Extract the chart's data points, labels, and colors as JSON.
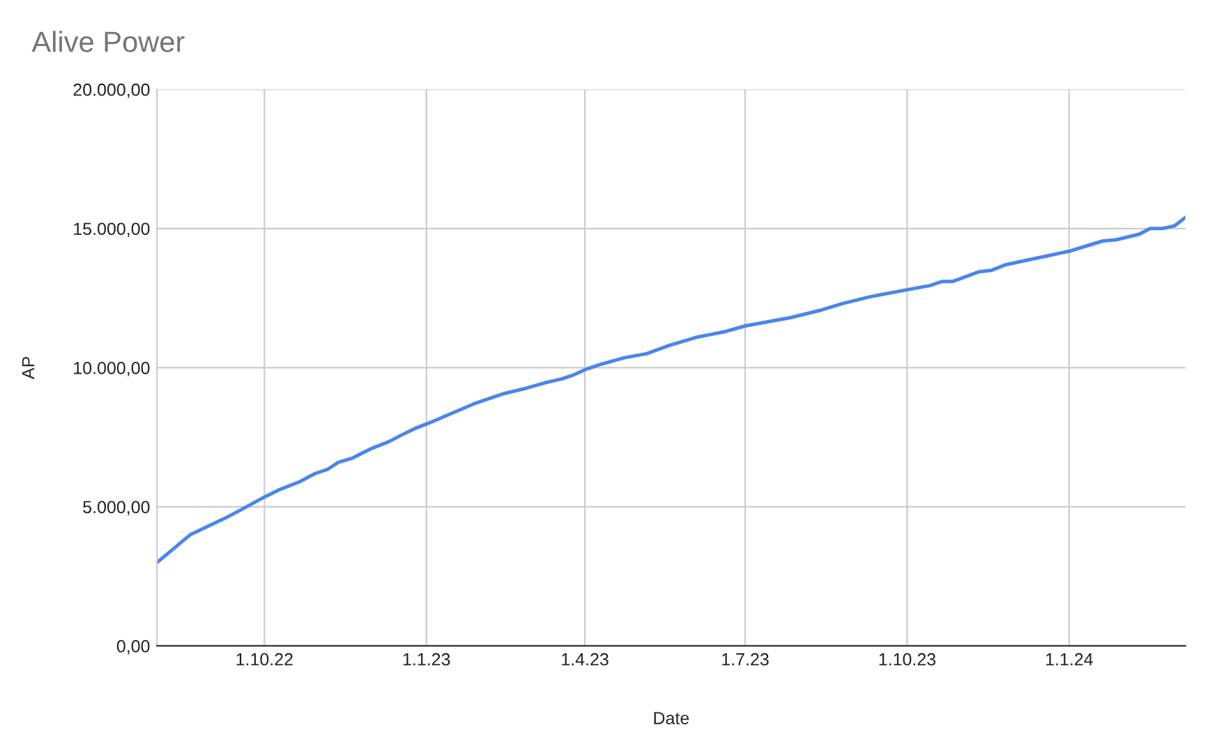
{
  "chart_data": {
    "type": "line",
    "title": "Alive Power",
    "xlabel": "Date",
    "ylabel": "AP",
    "x": [
      "2022-08-01",
      "2022-08-20",
      "2022-09-09",
      "2022-09-18",
      "2022-10-01",
      "2022-10-09",
      "2022-10-21",
      "2022-10-30",
      "2022-11-06",
      "2022-11-12",
      "2022-11-20",
      "2022-12-01",
      "2022-12-11",
      "2022-12-17",
      "2022-12-25",
      "2023-01-04",
      "2023-01-15",
      "2023-01-28",
      "2023-02-13",
      "2023-02-26",
      "2023-03-09",
      "2023-03-19",
      "2023-03-26",
      "2023-04-02",
      "2023-04-09",
      "2023-04-23",
      "2023-05-06",
      "2023-05-19",
      "2023-06-04",
      "2023-06-20",
      "2023-07-01",
      "2023-07-14",
      "2023-07-27",
      "2023-08-12",
      "2023-08-25",
      "2023-09-10",
      "2023-10-01",
      "2023-10-14",
      "2023-10-21",
      "2023-10-27",
      "2023-11-11",
      "2023-11-18",
      "2023-11-26",
      "2023-12-07",
      "2023-12-22",
      "2024-01-02",
      "2024-01-07",
      "2024-01-20",
      "2024-01-28",
      "2024-02-10",
      "2024-02-16",
      "2024-02-23",
      "2024-03-01",
      "2024-03-07"
    ],
    "series": [
      {
        "color": "#4a86e8",
        "values": [
          3000,
          4000,
          4600,
          4900,
          5350,
          5600,
          5900,
          6200,
          6350,
          6600,
          6750,
          7100,
          7350,
          7550,
          7800,
          8050,
          8350,
          8700,
          9050,
          9250,
          9450,
          9600,
          9750,
          9950,
          10100,
          10350,
          10500,
          10800,
          11100,
          11300,
          11500,
          11650,
          11800,
          12050,
          12300,
          12550,
          12800,
          12950,
          13100,
          13100,
          13450,
          13500,
          13700,
          13850,
          14050,
          14200,
          14300,
          14550,
          14600,
          14800,
          15000,
          15000,
          15100,
          15400
        ]
      }
    ],
    "xlim": [
      "2022-08-01",
      "2024-03-07"
    ],
    "xticks": [
      {
        "value": "2022-10-01",
        "label": "1.10.22"
      },
      {
        "value": "2023-01-01",
        "label": "1.1.23"
      },
      {
        "value": "2023-04-01",
        "label": "1.4.23"
      },
      {
        "value": "2023-07-01",
        "label": "1.7.23"
      },
      {
        "value": "2023-10-01",
        "label": "1.10.23"
      },
      {
        "value": "2024-01-01",
        "label": "1.1.24"
      }
    ],
    "ylim": [
      0,
      20000
    ],
    "yticks": [
      {
        "value": 0,
        "label": "0,00"
      },
      {
        "value": 5000,
        "label": "5.000,00"
      },
      {
        "value": 10000,
        "label": "10.000,00"
      },
      {
        "value": 15000,
        "label": "15.000,00"
      },
      {
        "value": 20000,
        "label": "20.000,00"
      }
    ],
    "grid": true
  }
}
